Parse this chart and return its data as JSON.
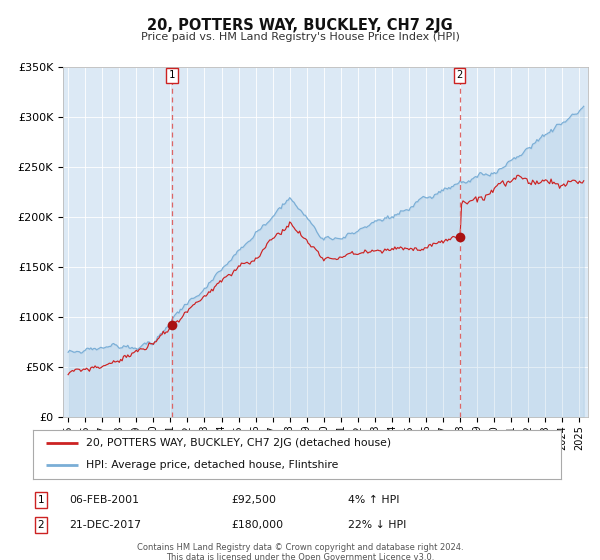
{
  "title": "20, POTTERS WAY, BUCKLEY, CH7 2JG",
  "subtitle": "Price paid vs. HM Land Registry's House Price Index (HPI)",
  "background_color": "#dce9f5",
  "fig_bg_color": "#ffffff",
  "ylim": [
    0,
    350000
  ],
  "yticks": [
    0,
    50000,
    100000,
    150000,
    200000,
    250000,
    300000,
    350000
  ],
  "ytick_labels": [
    "£0",
    "£50K",
    "£100K",
    "£150K",
    "£200K",
    "£250K",
    "£300K",
    "£350K"
  ],
  "xlim_start": 1994.7,
  "xlim_end": 2025.5,
  "xtick_years": [
    1995,
    1996,
    1997,
    1998,
    1999,
    2000,
    2001,
    2002,
    2003,
    2004,
    2005,
    2006,
    2007,
    2008,
    2009,
    2010,
    2011,
    2012,
    2013,
    2014,
    2015,
    2016,
    2017,
    2018,
    2019,
    2020,
    2021,
    2022,
    2023,
    2024,
    2025
  ],
  "red_line_color": "#cc2222",
  "blue_line_color": "#7aaed6",
  "marker_color": "#aa1111",
  "vline_color": "#dd6666",
  "event1_x": 2001.1,
  "event1_y": 92500,
  "event1_label": "1",
  "event1_date": "06-FEB-2001",
  "event1_price": "£92,500",
  "event1_hpi": "4% ↑ HPI",
  "event2_x": 2017.97,
  "event2_y": 180000,
  "event2_label": "2",
  "event2_date": "21-DEC-2017",
  "event2_price": "£180,000",
  "event2_hpi": "22% ↓ HPI",
  "legend_line1": "20, POTTERS WAY, BUCKLEY, CH7 2JG (detached house)",
  "legend_line2": "HPI: Average price, detached house, Flintshire",
  "footer1": "Contains HM Land Registry data © Crown copyright and database right 2024.",
  "footer2": "This data is licensed under the Open Government Licence v3.0."
}
